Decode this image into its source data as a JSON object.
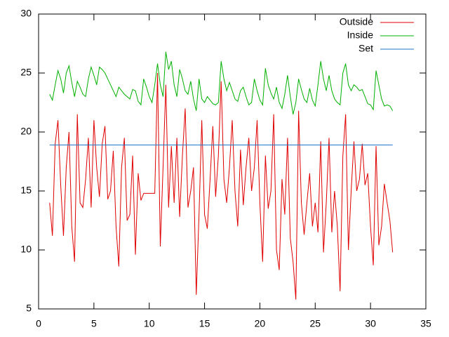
{
  "chart_data": {
    "type": "line",
    "x": [
      1,
      1.25,
      1.5,
      1.75,
      2,
      2.25,
      2.5,
      2.75,
      3,
      3.25,
      3.5,
      3.75,
      4,
      4.25,
      4.5,
      4.75,
      5,
      5.25,
      5.5,
      5.75,
      6,
      6.25,
      6.5,
      6.75,
      7,
      7.25,
      7.5,
      7.75,
      8,
      8.25,
      8.5,
      8.75,
      9,
      9.25,
      9.5,
      9.75,
      10,
      10.25,
      10.5,
      10.75,
      11,
      11.25,
      11.5,
      11.75,
      12,
      12.25,
      12.5,
      12.75,
      13,
      13.25,
      13.5,
      13.75,
      14,
      14.25,
      14.5,
      14.75,
      15,
      15.25,
      15.5,
      15.75,
      16,
      16.25,
      16.5,
      16.75,
      17,
      17.25,
      17.5,
      17.75,
      18,
      18.25,
      18.5,
      18.75,
      19,
      19.25,
      19.5,
      19.75,
      20,
      20.25,
      20.5,
      20.75,
      21,
      21.25,
      21.5,
      21.75,
      22,
      22.25,
      22.5,
      22.75,
      23,
      23.25,
      23.5,
      23.75,
      24,
      24.25,
      24.5,
      24.75,
      25,
      25.25,
      25.5,
      25.75,
      26,
      26.25,
      26.5,
      26.75,
      27,
      27.25,
      27.5,
      27.75,
      28,
      28.25,
      28.5,
      28.75,
      29,
      29.25,
      29.5,
      29.75,
      30,
      30.25,
      30.5,
      30.75,
      31,
      31.25,
      31.5,
      31.75,
      32
    ],
    "series": [
      {
        "name": "Outside",
        "color": "#e00000",
        "values": [
          14,
          11.2,
          19,
          21,
          15.5,
          11.2,
          17,
          20,
          12,
          9,
          21.5,
          14,
          13.6,
          16,
          19.5,
          13.6,
          21,
          17,
          14.5,
          19,
          20.5,
          14.3,
          15,
          18.4,
          12,
          8.6,
          17,
          19.5,
          12.5,
          13,
          18,
          9.6,
          16.5,
          14.2,
          14.8,
          14.8,
          14.8,
          14.8,
          14.8,
          25,
          10.3,
          17,
          24,
          13.6,
          18.8,
          14,
          19.5,
          12.8,
          18,
          22,
          13.6,
          15,
          17,
          6.2,
          13,
          21,
          13,
          11.8,
          16,
          20.5,
          14.5,
          18,
          24.3,
          16,
          14,
          17,
          21,
          15,
          12,
          18.5,
          13.8,
          17,
          19.5,
          15,
          17,
          21,
          14,
          9,
          18,
          13.5,
          15,
          21.5,
          10,
          8.3,
          16,
          13,
          19.5,
          11,
          9,
          5.8,
          21.8,
          14,
          11.3,
          14,
          16.5,
          12,
          14,
          11.5,
          19.2,
          9.8,
          14,
          19.5,
          11.5,
          15,
          12,
          6.5,
          18,
          21.5,
          10,
          15,
          19.2,
          15,
          16,
          19,
          15.5,
          16.5,
          12,
          8.7,
          18.8,
          10.4,
          12,
          15.6,
          14,
          12.5,
          9.8
        ]
      },
      {
        "name": "Inside",
        "color": "#00b000",
        "values": [
          23.2,
          22.7,
          24,
          25.2,
          24.5,
          23.3,
          25,
          25.6,
          24.2,
          23,
          24.3,
          23.8,
          23.2,
          23,
          24.5,
          25.5,
          24.8,
          24,
          25.5,
          25.3,
          25,
          24.5,
          24,
          23.5,
          23,
          23.8,
          23.5,
          23.2,
          23,
          22.8,
          23.6,
          23.5,
          22.6,
          22.3,
          24.5,
          23.8,
          23,
          22.5,
          24,
          25.8,
          24,
          23,
          26.8,
          25.3,
          26,
          24,
          23,
          25.3,
          24.5,
          23.5,
          23.2,
          24.3,
          22.8,
          21.8,
          24.5,
          22.8,
          22.5,
          23,
          22.7,
          22.4,
          22.3,
          22.5,
          26,
          24.5,
          23.5,
          24.2,
          23.5,
          22.8,
          22.6,
          23.5,
          23.8,
          23,
          22.3,
          22.5,
          24.5,
          23.5,
          22.7,
          22.3,
          25.4,
          24,
          23.3,
          22.8,
          23.8,
          22.5,
          22,
          23.2,
          24.8,
          23,
          21.5,
          22.5,
          24.5,
          23.6,
          22.8,
          22.5,
          23.7,
          22.7,
          22.2,
          24,
          26,
          24.5,
          23.5,
          24.8,
          23.5,
          22.8,
          22.5,
          22.3,
          25,
          25.8,
          24,
          23.5,
          24,
          23.8,
          23.5,
          23.6,
          23,
          22.4,
          22.3,
          21.9,
          25.2,
          24,
          22.8,
          22.2,
          22.3,
          22.2,
          21.8
        ]
      },
      {
        "name": "Set",
        "color": "#1f78c8",
        "x": [
          1,
          32
        ],
        "values": [
          18.9,
          18.9
        ]
      }
    ],
    "xlim": [
      0,
      35
    ],
    "xticks": [
      0,
      5,
      10,
      15,
      20,
      25,
      30,
      35
    ],
    "ylim": [
      5,
      30
    ],
    "yticks": [
      5,
      10,
      15,
      20,
      25,
      30
    ],
    "legend": "top-right"
  }
}
